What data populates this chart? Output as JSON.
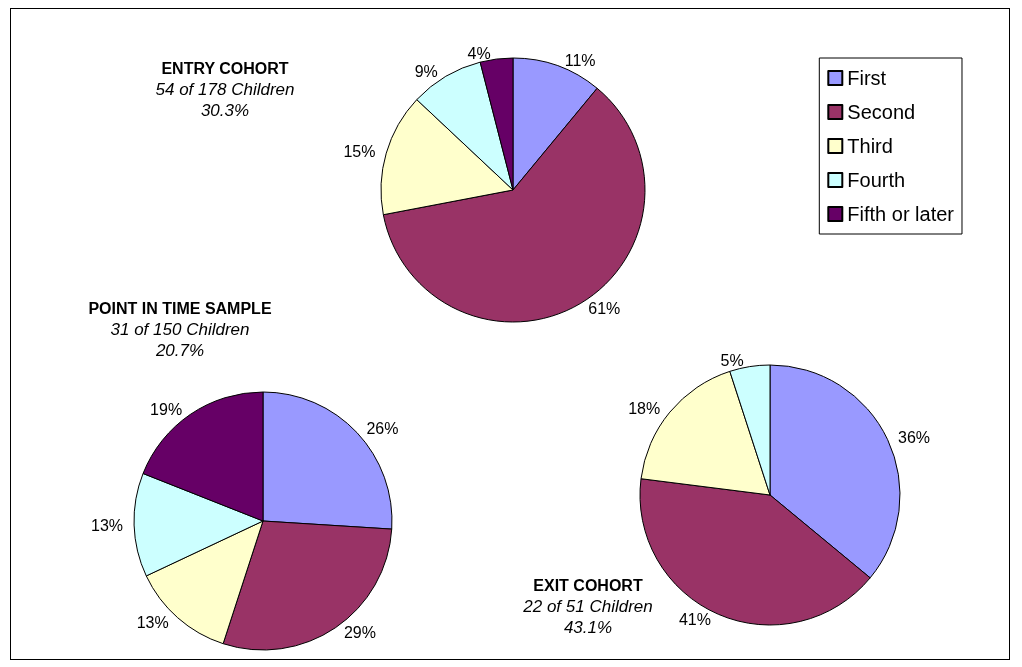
{
  "chart_data": [
    {
      "type": "pie",
      "title": "ENTRY COHORT",
      "subtitle": "54 of 178 Children\n30.3%",
      "categories": [
        "First",
        "Second",
        "Third",
        "Fourth",
        "Fifth or later"
      ],
      "values": [
        11,
        61,
        15,
        9,
        4
      ],
      "value_labels": [
        "11%",
        "61%",
        "15%",
        "9%",
        "4%"
      ],
      "colors": [
        "#9999ff",
        "#993366",
        "#ffffcc",
        "#ccffff",
        "#660066"
      ],
      "legend": "top right"
    },
    {
      "type": "pie",
      "title": "POINT IN TIME SAMPLE",
      "subtitle": "31 of 150 Children\n20.7%",
      "categories": [
        null,
        null,
        null,
        null,
        null
      ],
      "values": [
        26,
        29,
        13,
        13,
        19
      ],
      "value_labels": [
        "26%",
        "29%",
        "13%",
        "13%",
        "19%"
      ],
      "colors": [
        "#9999ff",
        "#993366",
        "#ffffcc",
        "#ccffff",
        "#660066"
      ]
    },
    {
      "type": "pie",
      "title": "EXIT COHORT",
      "subtitle": "22 of 51 Children\n43.1%",
      "categories": [
        null,
        null,
        null,
        null
      ],
      "values": [
        36,
        41,
        18,
        5
      ],
      "value_labels": [
        "36%",
        "41%",
        "18%",
        "5%"
      ],
      "colors": [
        "#9999ff",
        "#993366",
        "#ffffcc",
        "#ccffff"
      ]
    }
  ]
}
